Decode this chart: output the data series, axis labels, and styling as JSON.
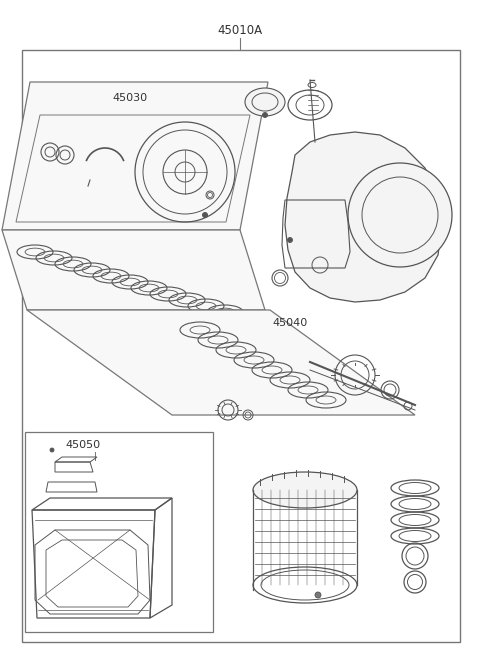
{
  "title": "45010A",
  "bg_color": "#ffffff",
  "border_color": "#777777",
  "line_color": "#555555",
  "label_45030": "45030",
  "label_45040": "45040",
  "label_45050": "45050",
  "fig_width": 4.8,
  "fig_height": 6.55,
  "dpi": 100
}
